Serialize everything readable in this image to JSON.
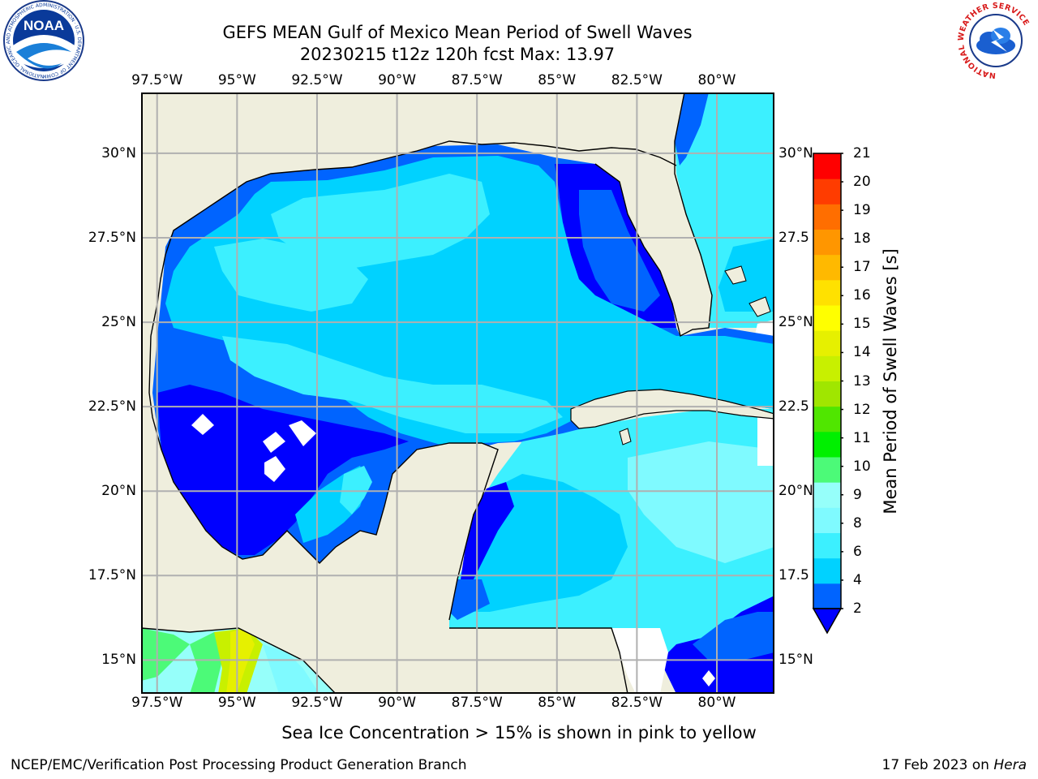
{
  "title": {
    "line1": "GEFS MEAN Gulf of Mexico Mean Period of Swell Waves",
    "line2": "20230215 t12z 120h fcst   Max: 13.97"
  },
  "logos": {
    "left": {
      "icon": "noaa-logo",
      "text": "NOAA",
      "ring": "NATIONAL OCEANIC AND ATMOSPHERIC ADMINISTRATION · U.S. DEPARTMENT OF COMMERCE"
    },
    "right": {
      "icon": "nws-logo",
      "ring": "NATIONAL WEATHER SERVICE"
    }
  },
  "map": {
    "lon_ticks": [
      "97.5°W",
      "95°W",
      "92.5°W",
      "90°W",
      "87.5°W",
      "85°W",
      "82.5°W",
      "80°W"
    ],
    "lat_ticks_left": [
      "30°N",
      "27.5°N",
      "25°N",
      "22.5°N",
      "20°N",
      "17.5°N",
      "15°N"
    ],
    "lat_ticks_right": [
      "30°N",
      "27.5",
      "25°N",
      "22.5",
      "20°N",
      "17.5",
      "15°N"
    ],
    "lon_range": [
      -98,
      -78.2
    ],
    "lat_range": [
      14,
      31.8
    ],
    "colors": {
      "land": "#efeedd",
      "grid": "#b0b0b0",
      "coast": "#000000"
    }
  },
  "colorbar": {
    "label": "Mean Period of Swell Waves [s]",
    "ticks": [
      "21",
      "20",
      "19",
      "18",
      "17",
      "16",
      "15",
      "14",
      "13",
      "12",
      "11",
      "10",
      "9",
      "8",
      "6",
      "4",
      "2"
    ],
    "colors_bottom_to_top": [
      "#0064ff",
      "#00d2ff",
      "#3cf0ff",
      "#7ffaff",
      "#96fffa",
      "#4cfa78",
      "#00f000",
      "#50e600",
      "#a0e600",
      "#c8f000",
      "#e6f000",
      "#ffff00",
      "#ffe100",
      "#ffb900",
      "#ff9600",
      "#ff6e00",
      "#ff3c00",
      "#ff0000"
    ],
    "extend_color": "#0000ff"
  },
  "caption": "Sea Ice Concentration > 15% is shown in pink to yellow",
  "footer": {
    "left": "NCEP/EMC/Verification Post Processing Product Generation Branch",
    "right_prefix": "17 Feb 2023 on ",
    "right_machine": "Hera"
  }
}
